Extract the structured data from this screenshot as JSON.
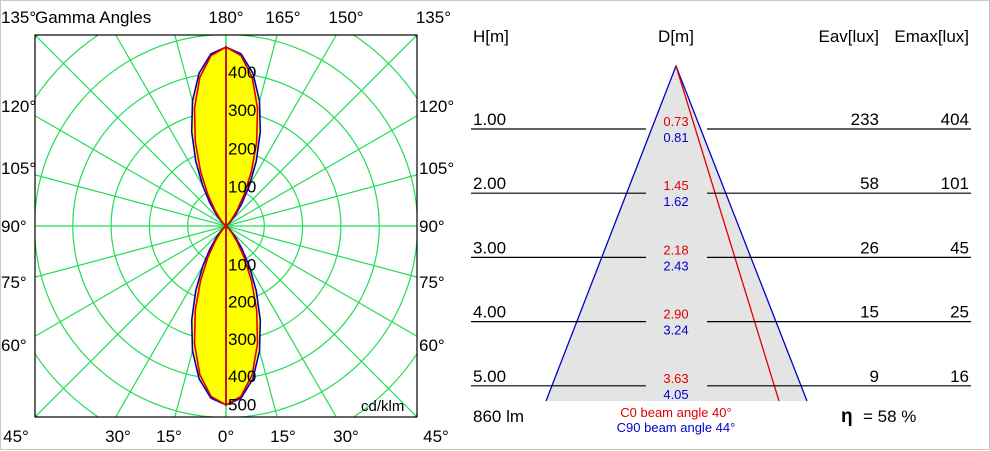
{
  "chart_data": [
    {
      "type": "polar",
      "title": "Gamma Angles",
      "unit_label": "cd/klm",
      "radial_ticks": [
        "100",
        "200",
        "300",
        "400",
        "500"
      ],
      "radial_range": [
        0,
        500
      ],
      "top_angle_labels": [
        "135°",
        "180°",
        "165°",
        "150°",
        "135°"
      ],
      "side_angle_labels": [
        "120°",
        "105°",
        "90°",
        "75°",
        "60°"
      ],
      "bottom_angle_labels": [
        "45°",
        "30°",
        "15°",
        "0°",
        "15°",
        "30°",
        "45°"
      ],
      "grid": true,
      "gamma": [
        0,
        5,
        10,
        15,
        20,
        25,
        30,
        35,
        40,
        45,
        50,
        55,
        60,
        90
      ],
      "series": [
        {
          "name": "C0",
          "color": "#e00000",
          "values": [
            467,
            447,
            394,
            318,
            234,
            157,
            95,
            51,
            24,
            10,
            4,
            1,
            0,
            0
          ]
        },
        {
          "name": "C90",
          "color": "#0000cc",
          "values": [
            467,
            451,
            405,
            338,
            262,
            187,
            122,
            73,
            39,
            19,
            8,
            3,
            0,
            0
          ]
        }
      ],
      "fill_color": "#ffff00",
      "grid_color": "#22dd55"
    },
    {
      "type": "table",
      "headers": {
        "h": "H[m]",
        "d": "D[m]",
        "eav": "Eav[lux]",
        "emax": "Emax[lux]"
      },
      "rows": [
        {
          "h": "1.00",
          "d_c0": "0.73",
          "d_c90": "0.81",
          "eav": "233",
          "emax": "404"
        },
        {
          "h": "2.00",
          "d_c0": "1.45",
          "d_c90": "1.62",
          "eav": "58",
          "emax": "101"
        },
        {
          "h": "3.00",
          "d_c0": "2.18",
          "d_c90": "2.43",
          "eav": "26",
          "emax": "45"
        },
        {
          "h": "4.00",
          "d_c0": "2.90",
          "d_c90": "3.24",
          "eav": "15",
          "emax": "25"
        },
        {
          "h": "5.00",
          "d_c0": "3.63",
          "d_c90": "4.05",
          "eav": "9",
          "emax": "16"
        }
      ],
      "flux": "860 lm",
      "beam_c0": "C0  beam angle 40°",
      "beam_c90": "C90 beam angle 44°",
      "beam_angles": {
        "C0": 40,
        "C90": 44
      },
      "efficiency_symbol": "η",
      "efficiency": "= 58 %",
      "colors": {
        "c0": "#e00000",
        "c90": "#0000cc",
        "cone": "#e4e4e4"
      }
    }
  ]
}
